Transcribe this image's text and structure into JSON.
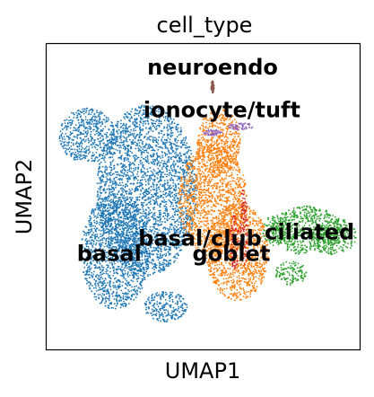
{
  "chart_data": {
    "type": "scatter",
    "title": "cell_type",
    "xlabel": "UMAP1",
    "ylabel": "UMAP2",
    "xlim": [
      0,
      10
    ],
    "ylim": [
      0,
      10
    ],
    "grid": false,
    "ticks": false,
    "legend": "on data",
    "series": [
      {
        "label": "basal",
        "color": "#1f77b4",
        "label_pos": [
          2.0,
          2.9
        ],
        "regions": [
          [
            3.2,
            5.2,
            1.6,
            2.8
          ],
          [
            2.2,
            3.2,
            1.1,
            1.9
          ],
          [
            1.3,
            7.0,
            0.9,
            0.9
          ],
          [
            3.8,
            1.4,
            0.7,
            0.5
          ]
        ]
      },
      {
        "label": "basal/club",
        "color": "#ff7f0e",
        "label_pos": [
          4.9,
          3.4
        ],
        "regions": [
          [
            5.3,
            4.9,
            1.1,
            1.8
          ],
          [
            6.1,
            3.2,
            1.0,
            1.6
          ],
          [
            5.5,
            6.8,
            0.7,
            1.1
          ]
        ]
      },
      {
        "label": "goblet",
        "color": "#d62728",
        "label_pos": [
          5.9,
          2.9
        ],
        "regions": [
          [
            6.0,
            3.5,
            0.15,
            0.9
          ],
          [
            6.3,
            4.0,
            0.12,
            1.3
          ]
        ]
      },
      {
        "label": "ciliated",
        "color": "#2ca02c",
        "label_pos": [
          8.4,
          3.6
        ],
        "regions": [
          [
            8.3,
            3.9,
            1.1,
            0.8
          ],
          [
            9.2,
            3.7,
            0.7,
            0.6
          ],
          [
            7.3,
            3.9,
            0.4,
            0.5
          ],
          [
            7.8,
            2.5,
            0.5,
            0.4
          ]
        ]
      },
      {
        "label": "ionocyte/tuft",
        "color": "#9467bd",
        "label_pos": [
          5.6,
          7.6
        ],
        "regions": [
          [
            6.2,
            7.3,
            0.4,
            0.12
          ],
          [
            5.3,
            7.1,
            0.3,
            0.1
          ]
        ]
      },
      {
        "label": "neuroendo",
        "color": "#8c564b",
        "label_pos": [
          5.3,
          9.0
        ],
        "regions": [
          [
            5.3,
            8.6,
            0.05,
            0.2
          ]
        ]
      }
    ]
  }
}
